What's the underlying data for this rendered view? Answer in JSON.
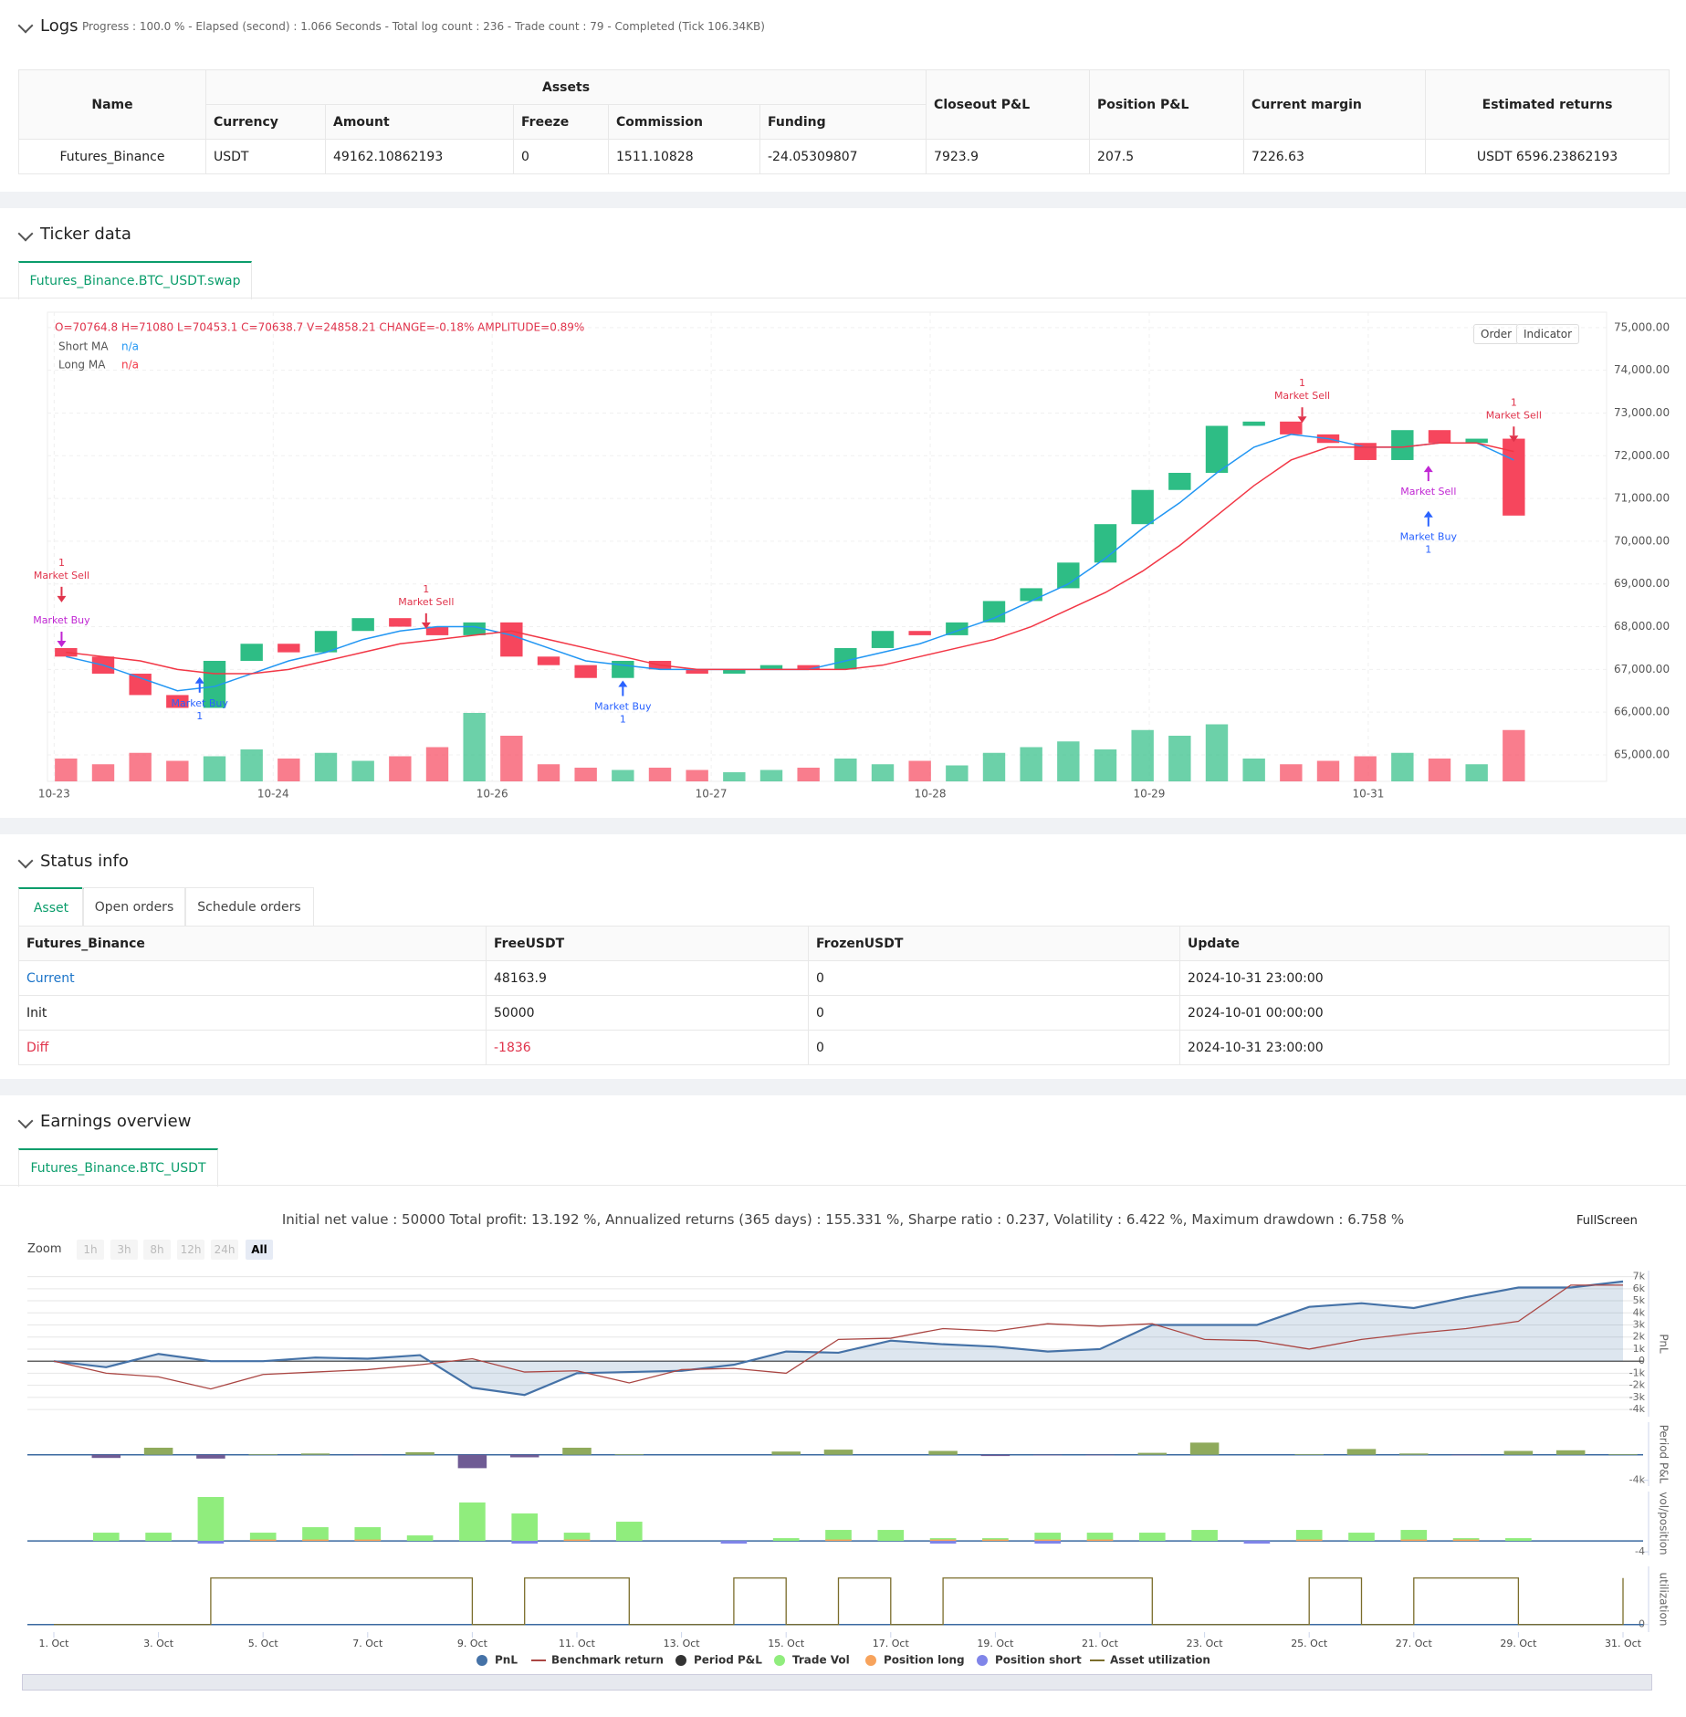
{
  "logs": {
    "title": "Logs",
    "progress": "Progress : 100.0 % - Elapsed (second) : 1.066  Seconds - Total log count : 236 - Trade count : 79 - Completed (Tick 106.34KB)",
    "table": {
      "header_top": [
        "Name",
        "Assets",
        "Closeout P&L",
        "Position P&L",
        "Current margin",
        "Estimated returns"
      ],
      "header_sub": [
        "Currency",
        "Amount",
        "Freeze",
        "Commission",
        "Funding"
      ],
      "rows": [
        [
          "Futures_Binance",
          "USDT",
          "49162.10862193",
          "0",
          "1511.10828",
          "-24.05309807",
          "7923.9",
          "207.5",
          "7226.63",
          "USDT 6596.23862193"
        ]
      ]
    }
  },
  "ticker": {
    "title": "Ticker data",
    "tab": "Futures_Binance.BTC_USDT.swap",
    "buttons": [
      "Order",
      "Indicator"
    ]
  },
  "status": {
    "title": "Status info",
    "tabs": [
      "Asset",
      "Open orders",
      "Schedule orders"
    ],
    "table": {
      "header": [
        "Futures_Binance",
        "FreeUSDT",
        "FrozenUSDT",
        "Update"
      ],
      "rows": [
        [
          "Current",
          "48163.9",
          "0",
          "2024-10-31 23:00:00"
        ],
        [
          "Init",
          "50000",
          "0",
          "2024-10-01 00:00:00"
        ],
        [
          "Diff",
          "-1836",
          "0",
          "2024-10-31 23:00:00"
        ]
      ]
    }
  },
  "earnings": {
    "title": "Earnings overview",
    "tab": "Futures_Binance.BTC_USDT",
    "summary": "Initial net value : 50000 Total profit: 13.192 %, Annualized returns (365 days) : 155.331 %, Sharpe ratio : 0.237, Volatility : 6.422 %, Maximum drawdown : 6.758 %",
    "zoom": "Zoom",
    "zoom_buttons": [
      "1h",
      "3h",
      "8h",
      "12h",
      "24h",
      "All"
    ],
    "fullscreen": "FullScreen"
  },
  "chart_data": [
    {
      "type": "candlestick",
      "info": "O=70764.8 H=71080 L=70453.1 C=70638.7 V=24858.21 CHANGE=-0.18% AMPLITUDE=0.89%",
      "up_color": "#2ebd85",
      "down_color": "#f6465d",
      "xlim": [
        0,
        42
      ],
      "xticks": [
        {
          "value": 0.18,
          "label": "10-23"
        },
        {
          "value": 6.08,
          "label": "10-24"
        },
        {
          "value": 11.98,
          "label": "10-26"
        },
        {
          "value": 17.88,
          "label": "10-27"
        },
        {
          "value": 23.78,
          "label": "10-28"
        },
        {
          "value": 29.68,
          "label": "10-29"
        },
        {
          "value": 35.58,
          "label": "10-31"
        }
      ],
      "ylim": [
        64380,
        75360
      ],
      "yticks": [
        {
          "value": 65000,
          "label": "65,000.00"
        },
        {
          "value": 66000,
          "label": "66,000.00"
        },
        {
          "value": 67000,
          "label": "67,000.00"
        },
        {
          "value": 68000,
          "label": "68,000.00"
        },
        {
          "value": 69000,
          "label": "69,000.00"
        },
        {
          "value": 70000,
          "label": "70,000.00"
        },
        {
          "value": 71000,
          "label": "71,000.00"
        },
        {
          "value": 72000,
          "label": "72,000.00"
        },
        {
          "value": 73000,
          "label": "73,000.00"
        },
        {
          "value": 74000,
          "label": "74,000.00"
        },
        {
          "value": 75000,
          "label": "75,000.00"
        }
      ],
      "grid": true,
      "open": [
        67500,
        67300,
        66900,
        66400,
        66100,
        67200,
        67600,
        67400,
        67900,
        68200,
        68000,
        67800,
        68100,
        67300,
        67100,
        66800,
        67200,
        67000,
        66900,
        67000,
        67100,
        67000,
        67500,
        67900,
        67800,
        68100,
        68600,
        68900,
        69500,
        70400,
        71200,
        71600,
        72700,
        72800,
        72500,
        72300,
        71900,
        72600,
        72300,
        72400
      ],
      "close": [
        67300,
        66900,
        66400,
        66100,
        67200,
        67600,
        67400,
        67900,
        68200,
        68000,
        67800,
        68100,
        67300,
        67100,
        66800,
        67200,
        67000,
        66900,
        67000,
        67100,
        67000,
        67500,
        67900,
        67800,
        68100,
        68600,
        68900,
        69500,
        70400,
        71200,
        71600,
        72700,
        72800,
        72500,
        72300,
        71900,
        72600,
        72300,
        72400,
        70600
      ],
      "volume": [
        20000,
        15000,
        25000,
        18000,
        22000,
        28000,
        20000,
        25000,
        18000,
        22000,
        30000,
        60000,
        40000,
        15000,
        12000,
        10000,
        12000,
        10000,
        8000,
        10000,
        12000,
        20000,
        15000,
        18000,
        14000,
        25000,
        30000,
        35000,
        28000,
        45000,
        40000,
        50000,
        20000,
        15000,
        18000,
        22000,
        25000,
        20000,
        15000,
        45000
      ],
      "series": [
        {
          "name": "Short MA",
          "legend_value": "n/a",
          "color": "#2196f3",
          "values": [
            67300,
            67100,
            66800,
            66500,
            66600,
            66900,
            67200,
            67400,
            67700,
            67900,
            68000,
            68000,
            67800,
            67500,
            67200,
            67100,
            67000,
            67000,
            67000,
            67000,
            67000,
            67200,
            67400,
            67600,
            67900,
            68200,
            68600,
            69000,
            69600,
            70300,
            70900,
            71600,
            72200,
            72500,
            72400,
            72200,
            72200,
            72300,
            72300,
            71900
          ]
        },
        {
          "name": "Long MA",
          "legend_value": "n/a",
          "color": "#f23645",
          "values": [
            67400,
            67300,
            67200,
            67000,
            66900,
            66900,
            67000,
            67200,
            67400,
            67600,
            67700,
            67800,
            67900,
            67700,
            67500,
            67300,
            67100,
            67000,
            67000,
            67000,
            67000,
            67000,
            67100,
            67300,
            67500,
            67700,
            68000,
            68400,
            68800,
            69300,
            69900,
            70600,
            71300,
            71900,
            72200,
            72200,
            72200,
            72300,
            72300,
            72100
          ]
        }
      ],
      "annotations": [
        {
          "text": "Market Sell",
          "qty": "1",
          "x": 0.38,
          "y": 68720,
          "color": "#e0334b",
          "arrow": "down",
          "label_pos": "above"
        },
        {
          "text": "Market Buy",
          "x": 0.38,
          "y": 67670,
          "color": "#c026d3",
          "arrow": "down",
          "label_pos": "above"
        },
        {
          "text": "Market Buy",
          "qty": "1",
          "x": 4.1,
          "y": 66670,
          "color": "#2962ff",
          "arrow": "up",
          "label_pos": "below"
        },
        {
          "text": "Market Sell",
          "qty": "1",
          "x": 10.2,
          "y": 68100,
          "color": "#e0334b",
          "arrow": "down",
          "label_pos": "above"
        },
        {
          "text": "Market Buy",
          "qty": "1",
          "x": 15.5,
          "y": 66590,
          "color": "#2962ff",
          "arrow": "up",
          "label_pos": "below"
        },
        {
          "text": "Market Sell",
          "qty": "1",
          "x": 33.8,
          "y": 72920,
          "color": "#e0334b",
          "arrow": "down",
          "label_pos": "above"
        },
        {
          "text": "Market Sell",
          "x": 37.2,
          "y": 71620,
          "color": "#c026d3",
          "arrow": "up",
          "label_pos": "below"
        },
        {
          "text": "Market Buy",
          "qty": "1",
          "x": 37.2,
          "y": 70560,
          "color": "#2962ff",
          "arrow": "up",
          "label_pos": "below"
        },
        {
          "text": "Market Sell",
          "qty": "1",
          "x": 39.5,
          "y": 72470,
          "color": "#e0334b",
          "arrow": "down",
          "label_pos": "above"
        }
      ]
    },
    {
      "type": "line",
      "x": [
        1,
        2,
        3,
        4,
        5,
        6,
        7,
        8,
        9,
        10,
        11,
        12,
        13,
        14,
        15,
        16,
        17,
        18,
        19,
        20,
        21,
        22,
        23,
        24,
        25,
        26,
        27,
        28,
        29,
        30,
        31
      ],
      "xlim": [
        1,
        31
      ],
      "xticks": [
        {
          "value": 1,
          "label": "1. Oct"
        },
        {
          "value": 3,
          "label": "3. Oct"
        },
        {
          "value": 5,
          "label": "5. Oct"
        },
        {
          "value": 7,
          "label": "7. Oct"
        },
        {
          "value": 9,
          "label": "9. Oct"
        },
        {
          "value": 11,
          "label": "11. Oct"
        },
        {
          "value": 13,
          "label": "13. Oct"
        },
        {
          "value": 15,
          "label": "15. Oct"
        },
        {
          "value": 17,
          "label": "17. Oct"
        },
        {
          "value": 19,
          "label": "19. Oct"
        },
        {
          "value": 21,
          "label": "21. Oct"
        },
        {
          "value": 23,
          "label": "23. Oct"
        },
        {
          "value": 25,
          "label": "25. Oct"
        },
        {
          "value": 27,
          "label": "27. Oct"
        },
        {
          "value": 29,
          "label": "29. Oct"
        },
        {
          "value": 31,
          "label": "31. Oct"
        }
      ],
      "ylabel": "PnL",
      "ylim": [
        -4600,
        7500
      ],
      "yticks": [
        {
          "value": 7000,
          "label": "7k"
        },
        {
          "value": 6000,
          "label": "6k"
        },
        {
          "value": 5000,
          "label": "5k"
        },
        {
          "value": 4000,
          "label": "4k"
        },
        {
          "value": 3000,
          "label": "3k"
        },
        {
          "value": 2000,
          "label": "2k"
        },
        {
          "value": 1000,
          "label": "1k"
        },
        0,
        {
          "value": -1000,
          "label": "-1k"
        },
        {
          "value": -2000,
          "label": "-2k"
        },
        {
          "value": -3000,
          "label": "-3k"
        },
        {
          "value": -4000,
          "label": "-4k"
        }
      ],
      "y2label": "Period P&L",
      "y2lim": [
        -4900,
        5100
      ],
      "y2ticks": [
        {
          "value": -4000,
          "label": "-4k"
        }
      ],
      "y3label": "vol/position",
      "y3lim": [
        -5.3,
        18
      ],
      "y3ticks": [
        -4
      ],
      "y4label": "utilization",
      "y4lim": [
        -0.13,
        1.0
      ],
      "y4ticks": [
        0
      ],
      "grid": true,
      "series": [
        {
          "name": "PnL",
          "color": "#4572a7",
          "type": "area",
          "axis": "y",
          "values": [
            0,
            -500,
            600,
            0,
            0,
            300,
            200,
            500,
            -2200,
            -2800,
            -1000,
            -900,
            -800,
            -300,
            800,
            700,
            1700,
            1400,
            1200,
            800,
            1000,
            3000,
            3000,
            3000,
            4500,
            4800,
            4400,
            5300,
            6100,
            6100,
            6600
          ]
        },
        {
          "name": "Benchmark return",
          "color": "#aa4643",
          "type": "line",
          "axis": "y",
          "values": [
            0,
            -1000,
            -1300,
            -2300,
            -1100,
            -900,
            -700,
            -300,
            200,
            -900,
            -800,
            -1800,
            -700,
            -600,
            -1000,
            1800,
            1900,
            2700,
            2500,
            3100,
            2900,
            3100,
            1800,
            1700,
            1000,
            1800,
            2300,
            2700,
            3300,
            6300,
            6300
          ]
        },
        {
          "name": "Period P&L",
          "color": "#333333",
          "positive_color": "#8faa5c",
          "negative_color": "#6f5b94",
          "type": "bar",
          "axis": "y2",
          "values": [
            0,
            -500,
            1100,
            -600,
            100,
            200,
            -100,
            400,
            -2100,
            -400,
            1100,
            100,
            0,
            0,
            500,
            800,
            0,
            600,
            -200,
            -100,
            -100,
            300,
            1900,
            0,
            100,
            900,
            200,
            -100,
            600,
            700,
            100
          ]
        },
        {
          "name": "Trade Vol",
          "color": "#90ed7d",
          "type": "bar",
          "axis": "y3",
          "values": [
            0,
            3,
            3,
            16,
            3,
            5,
            5,
            2,
            14,
            10,
            3,
            7,
            0,
            0,
            1,
            4,
            4,
            1,
            1,
            3,
            3,
            3,
            4,
            0,
            4,
            3,
            4,
            1,
            1,
            0,
            0
          ]
        },
        {
          "name": "Position long",
          "color": "#f7a35c",
          "type": "bar",
          "axis": "y3",
          "values": [
            0,
            0,
            0,
            0,
            0.5,
            0.5,
            0.5,
            0,
            0,
            0,
            0.5,
            0,
            0,
            0,
            0,
            0.5,
            0,
            0.5,
            0.5,
            0.5,
            0.5,
            0,
            0,
            0,
            0.5,
            0,
            0.5,
            0.5,
            0,
            0,
            0
          ]
        },
        {
          "name": "Position short",
          "color": "#8085e9",
          "type": "bar",
          "axis": "y3",
          "values": [
            0,
            0,
            0,
            -1,
            0,
            0,
            0,
            0,
            0,
            -1,
            0,
            0,
            0,
            -1,
            0,
            0,
            0,
            -1,
            0,
            -1,
            0,
            0,
            0,
            -1,
            0,
            0,
            0,
            0,
            0,
            0,
            0
          ]
        },
        {
          "name": "Asset utilization",
          "color": "#7b6d2b",
          "type": "step",
          "axis": "y4",
          "values": [
            0,
            0,
            0,
            0.8,
            0.8,
            0.8,
            0.8,
            0.8,
            0,
            0.8,
            0.8,
            0,
            0,
            0.8,
            0,
            0.8,
            0,
            0.8,
            0.8,
            0.8,
            0.8,
            0,
            0,
            0,
            0.8,
            0,
            0.8,
            0.8,
            0,
            0,
            0.8
          ]
        }
      ]
    }
  ]
}
